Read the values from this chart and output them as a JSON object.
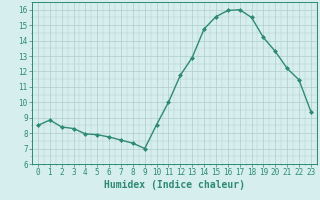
{
  "x": [
    0,
    1,
    2,
    3,
    4,
    5,
    6,
    7,
    8,
    9,
    10,
    11,
    12,
    13,
    14,
    15,
    16,
    17,
    18,
    19,
    20,
    21,
    22,
    23
  ],
  "y": [
    8.5,
    8.85,
    8.4,
    8.3,
    7.95,
    7.9,
    7.75,
    7.55,
    7.35,
    7.0,
    8.55,
    10.0,
    11.75,
    12.9,
    14.75,
    15.55,
    15.95,
    16.0,
    15.5,
    14.2,
    13.3,
    12.2,
    11.45,
    9.4
  ],
  "xlabel": "Humidex (Indice chaleur)",
  "xlim": [
    -0.5,
    23.5
  ],
  "ylim": [
    6,
    16.5
  ],
  "yticks": [
    6,
    7,
    8,
    9,
    10,
    11,
    12,
    13,
    14,
    15,
    16
  ],
  "xticks": [
    0,
    1,
    2,
    3,
    4,
    5,
    6,
    7,
    8,
    9,
    10,
    11,
    12,
    13,
    14,
    15,
    16,
    17,
    18,
    19,
    20,
    21,
    22,
    23
  ],
  "line_color": "#2e8b72",
  "marker": "D",
  "marker_size": 2.0,
  "bg_color": "#d6eeee",
  "grid_color": "#b0cccc",
  "line_width": 1.0,
  "xlabel_fontsize": 7,
  "tick_fontsize": 5.5
}
